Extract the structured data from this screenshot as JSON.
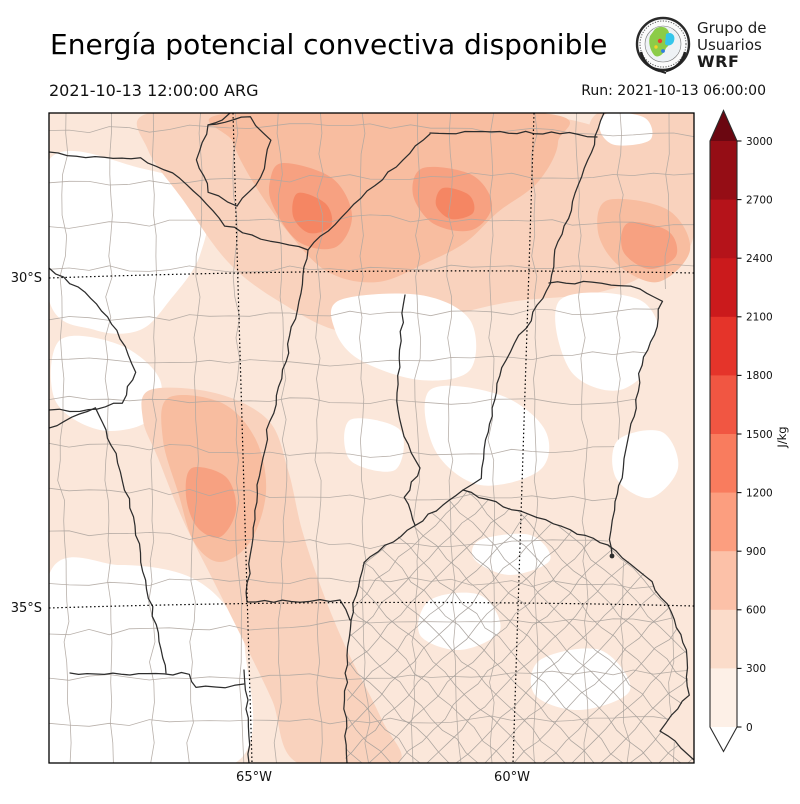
{
  "header": {
    "title": "Energía potencial convectiva disponible",
    "valid_time": "2021-10-13 12:00:00 ARG",
    "run_time": "Run: 2021-10-13 06:00:00",
    "logo": {
      "line1": "Grupo de",
      "line2": "Usuarios",
      "line3": "WRF"
    }
  },
  "map": {
    "lat_ticks": [
      {
        "label": "30°S"
      },
      {
        "label": "35°S"
      }
    ],
    "lon_ticks": [
      {
        "label": "65°W"
      },
      {
        "label": "60°W"
      }
    ],
    "boundary_color": "#2d2d2d",
    "department_color": "#b0a7a1",
    "department_color_ba": "#a6a09b",
    "shade_palette": [
      "#fbe7da",
      "#f9d2bd",
      "#f8bda0",
      "#f7a181",
      "#f58663"
    ],
    "background_color": "#ffffff"
  },
  "colorbar": {
    "units": "J/kg",
    "levels": [
      0,
      300,
      600,
      900,
      1200,
      1500,
      1800,
      2100,
      2400,
      2700,
      3000
    ],
    "tick_labels": [
      "3000",
      "2700",
      "2400",
      "2100",
      "1800",
      "1500",
      "1200",
      "900",
      "600",
      "300",
      "0"
    ],
    "segment_colors_top_to_bottom": [
      "#950d15",
      "#b5131a",
      "#cb1a1c",
      "#e5342a",
      "#f15642",
      "#f97c5e",
      "#fc9e7f",
      "#fcc1a8",
      "#fbdcca",
      "#fdf0e7"
    ],
    "over_arrow_color": "#6b0711",
    "under_arrow_color": "#ffffff",
    "outline_color": "#2b2b2b"
  }
}
